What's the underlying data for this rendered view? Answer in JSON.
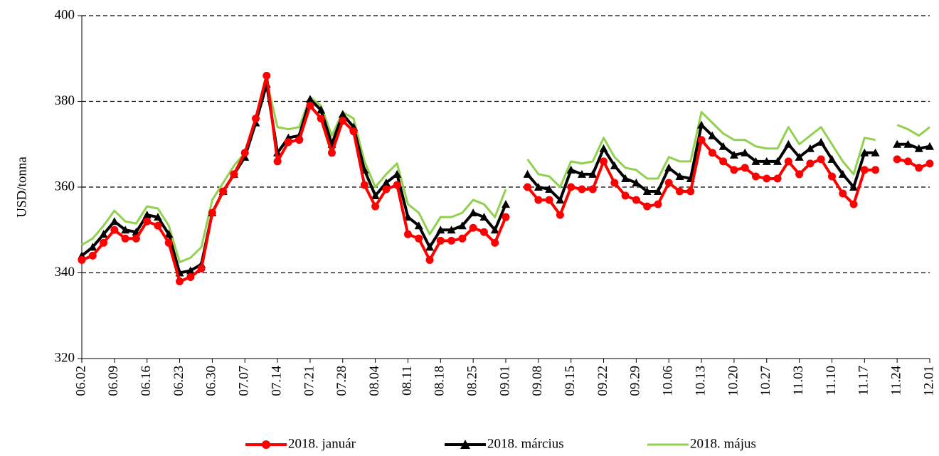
{
  "chart_data": {
    "type": "line",
    "ylabel": "USD/tonna",
    "categories": [
      "06.02",
      null,
      null,
      "06.09",
      null,
      null,
      "06.16",
      null,
      null,
      "06.23",
      null,
      null,
      "06.30",
      null,
      null,
      "07.07",
      null,
      null,
      "07.14",
      null,
      null,
      "07.21",
      null,
      null,
      "07.28",
      null,
      null,
      "08.04",
      null,
      null,
      "08.11",
      null,
      null,
      "08.18",
      null,
      null,
      "08.25",
      null,
      null,
      "09.01",
      null,
      null,
      "09.08",
      null,
      null,
      "09.15",
      null,
      null,
      "09.22",
      null,
      null,
      "09.29",
      null,
      null,
      "10.06",
      null,
      null,
      "10.13",
      null,
      null,
      "10.20",
      null,
      null,
      "10.27",
      null,
      null,
      "11.03",
      null,
      null,
      "11.10",
      null,
      null,
      "11.17",
      null,
      null,
      "11.24",
      null,
      null,
      "12.01"
    ],
    "series": [
      {
        "name": "2018. január",
        "color": "#ff0000",
        "marker": "circle",
        "values": [
          343,
          344,
          347,
          350,
          348,
          348,
          352,
          351,
          347,
          338,
          339,
          341,
          354,
          359,
          363,
          368,
          376,
          386,
          366,
          370.5,
          371,
          379,
          376,
          368,
          375.5,
          373,
          360.5,
          355.5,
          359.5,
          360.5,
          349,
          348,
          343,
          347.5,
          347.5,
          348,
          350.5,
          349.5,
          347,
          353,
          null,
          360,
          357,
          357,
          353.5,
          360,
          359.5,
          359.5,
          366,
          361,
          358,
          357,
          355.5,
          356,
          361,
          359,
          359,
          371,
          368,
          366,
          364,
          364.5,
          362.5,
          362,
          362,
          366,
          363,
          365.5,
          366.5,
          362.5,
          358.5,
          356,
          364,
          364,
          null,
          366.5,
          366,
          364.5,
          365.5
        ]
      },
      {
        "name": "2018. március",
        "color": "#000000",
        "marker": "triangle",
        "values": [
          344,
          346,
          349,
          352,
          350,
          349.5,
          353.5,
          353,
          349,
          340,
          340.5,
          342,
          354,
          359,
          363,
          367,
          375,
          384,
          368,
          371.5,
          372,
          380.5,
          378,
          370,
          377,
          374,
          364,
          358,
          361,
          363,
          353,
          351,
          346,
          350,
          350,
          351,
          354,
          353,
          350,
          356,
          null,
          363,
          360,
          359.5,
          357,
          364,
          363,
          363,
          369,
          365,
          362,
          361,
          359,
          359,
          364.5,
          362.5,
          362,
          374.5,
          372,
          369.5,
          367.5,
          368,
          366,
          366,
          366,
          370,
          367,
          369,
          370.5,
          366.5,
          363,
          360,
          368,
          368,
          null,
          370,
          370,
          369,
          369.5
        ]
      },
      {
        "name": "2018. május",
        "color": "#92d050",
        "marker": "none",
        "values": [
          346.5,
          348,
          351,
          354.5,
          352,
          351.5,
          355.5,
          355,
          351,
          342.5,
          343.5,
          346,
          357,
          361,
          365,
          368,
          376,
          385,
          374,
          373.5,
          374,
          381,
          379,
          372,
          377.5,
          376,
          366,
          360,
          363,
          365.5,
          356,
          354,
          349,
          353,
          353,
          354,
          357,
          356,
          353,
          359.5,
          null,
          366.5,
          363,
          362.5,
          360,
          366,
          365.5,
          366,
          371.5,
          367,
          364.5,
          364,
          362,
          362,
          367,
          366,
          366,
          377.5,
          375,
          372.5,
          371,
          371,
          369.5,
          369,
          369,
          374,
          370,
          372,
          374,
          370,
          366,
          363,
          371.5,
          371,
          null,
          374.5,
          373.5,
          372,
          374
        ]
      }
    ],
    "ylim": [
      320,
      400
    ],
    "yticks": [
      320,
      340,
      360,
      380,
      400
    ],
    "grid": true
  }
}
